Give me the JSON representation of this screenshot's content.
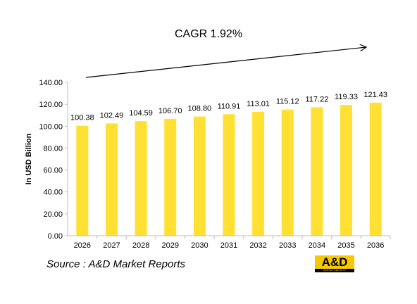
{
  "chart_data": {
    "type": "bar",
    "categories": [
      "2026",
      "2027",
      "2028",
      "2029",
      "2030",
      "2031",
      "2032",
      "2033",
      "2034",
      "2035",
      "2036"
    ],
    "values": [
      100.38,
      102.49,
      104.59,
      106.7,
      108.8,
      110.91,
      113.01,
      115.12,
      117.22,
      119.33,
      121.43
    ],
    "value_labels": [
      "100.38",
      "102.49",
      "104.59",
      "106.70",
      "108.80",
      "110.91",
      "113.01",
      "115.12",
      "117.22",
      "119.33",
      "121.43"
    ],
    "ylabel": "In USD Billion",
    "ylim": [
      0,
      140
    ],
    "yticks": [
      "0.00",
      "20.00",
      "40.00",
      "60.00",
      "80.00",
      "100.00",
      "120.00",
      "140.00"
    ],
    "grid": false,
    "bar_color": "#ffe033",
    "annotation": "CAGR 1.92%"
  },
  "source": "Source : A&D Market Reports",
  "logo": {
    "text": "A&D",
    "subtext": "MARKET REPORTS",
    "color": "#f5c800"
  }
}
